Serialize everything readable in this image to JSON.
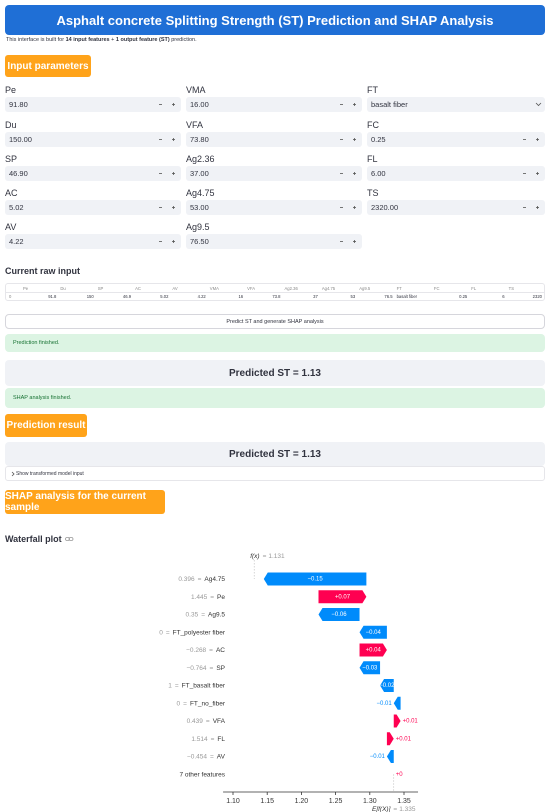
{
  "header": {
    "title": "Asphalt concrete Splitting Strength (ST) Prediction and SHAP Analysis",
    "intro": [
      "This interface is built for ",
      "14 input features",
      " + ",
      "1 output feature (ST)",
      " prediction."
    ]
  },
  "inputs": {
    "button": "Input parameters",
    "columns": [
      [
        {
          "label": "Pe",
          "value": "91.80"
        },
        {
          "label": "Du",
          "value": "150.00"
        },
        {
          "label": "SP",
          "value": "46.90"
        },
        {
          "label": "AC",
          "value": "5.02"
        },
        {
          "label": "AV",
          "value": "4.22"
        }
      ],
      [
        {
          "label": "VMA",
          "value": "16.00"
        },
        {
          "label": "VFA",
          "value": "73.80"
        },
        {
          "label": "Ag2.36",
          "value": "37.00"
        },
        {
          "label": "Ag4.75",
          "value": "53.00"
        },
        {
          "label": "Ag9.5",
          "value": "76.50"
        }
      ],
      [
        {
          "label": "FT",
          "value": "basalt fiber",
          "kind": "select"
        },
        {
          "label": "FC",
          "value": "0.25"
        },
        {
          "label": "FL",
          "value": "6.00"
        },
        {
          "label": "TS",
          "value": "2320.00"
        }
      ]
    ]
  },
  "raw_input": {
    "title": "Current raw input",
    "columns": [
      "Pe",
      "Du",
      "SP",
      "AC",
      "AV",
      "VMA",
      "VFA",
      "Ag2.36",
      "Ag4.75",
      "Ag9.5",
      "FT",
      "FC",
      "FL",
      "TS"
    ],
    "index": [
      "0"
    ],
    "rows": [
      [
        "91.8",
        "150",
        "46.9",
        "5.02",
        "4.22",
        "16",
        "73.8",
        "37",
        "53",
        "76.5",
        "basalt fiber",
        "0.25",
        "6",
        "2320"
      ]
    ]
  },
  "predict_button": "Predict ST and generate SHAP analysis",
  "prediction_message": "Prediction finished.",
  "predicted_1": "Predicted ST = 1.13",
  "shap_message": "SHAP analysis finished.",
  "result_button": "Prediction result",
  "predicted_2": "Predicted ST = 1.13",
  "expander": "Show transformed model input",
  "shap_button": "SHAP analysis for the current sample",
  "waterfall_title": "Waterfall plot",
  "waterfall": {
    "fx_label": "f(x)",
    "fx": 1.131,
    "base_label": "E[f(X)]",
    "base": 1.335,
    "features": [
      "Ag4.75",
      "Pe",
      "Ag9.5",
      "FT_polyester fiber",
      "AC",
      "SP",
      "FT_basalt fiber",
      "FT_no_fiber",
      "VFA",
      "FL",
      "AV",
      "7 other features"
    ],
    "feature_values": [
      "0.396",
      "1.445",
      "0.35",
      "0",
      "−0.268",
      "−0.764",
      "1",
      "0",
      "0.439",
      "1.514",
      "−0.454",
      null
    ],
    "values": [
      -0.15,
      0.07,
      -0.06,
      -0.04,
      0.04,
      -0.03,
      -0.02,
      -0.01,
      0.01,
      0.01,
      -0.01,
      0
    ],
    "value_labels": [
      "−0.15",
      "+0.07",
      "−0.06",
      "−0.04",
      "+0.04",
      "−0.03",
      "−0.02",
      "−0.01",
      "+0.01",
      "+0.01",
      "−0.01",
      "+0"
    ],
    "positive_color": "#ff0051",
    "negative_color": "#008bfb",
    "xlim": [
      1.0855,
      1.3705
    ],
    "xticks": [
      {
        "value": 1.1,
        "label": "1.10"
      },
      1.15,
      {
        "value": 1.2,
        "label": "1.20"
      },
      1.25,
      {
        "value": 1.3,
        "label": "1.30"
      },
      1.35
    ]
  }
}
